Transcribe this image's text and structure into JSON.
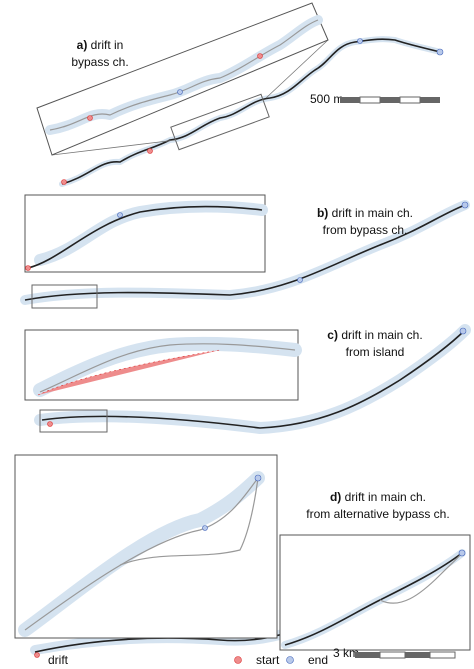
{
  "panels": [
    {
      "letter": "a)",
      "lines": [
        "drift in",
        "bypass ch."
      ]
    },
    {
      "letter": "b)",
      "lines": [
        "drift in main ch.",
        "from bypass ch."
      ]
    },
    {
      "letter": "c)",
      "lines": [
        "drift in main ch.",
        "from island"
      ]
    },
    {
      "letter": "d)",
      "lines": [
        "drift in main ch.",
        "from alternative bypass ch."
      ]
    }
  ],
  "scale_bars": {
    "top": "500 m",
    "bottom": "3 km"
  },
  "legend": {
    "title": "drift",
    "items": [
      "start",
      "end"
    ]
  }
}
